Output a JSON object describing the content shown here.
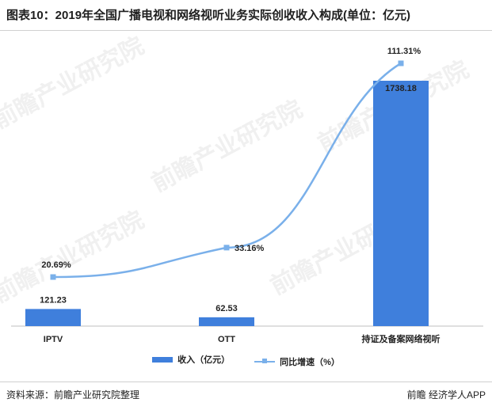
{
  "title": "图表10：2019年全国广播电视和网络视听业务实际创收收入构成(单位：亿元)",
  "source": "资料来源：前瞻产业研究院整理",
  "brand": "前瞻 经济学人APP",
  "watermark": "前瞻产业研究院",
  "colors": {
    "bar": "#3f7fdc",
    "line": "#7ab0ea"
  },
  "chart_data": {
    "type": "bar",
    "categories": [
      "IPTV",
      "OTT",
      "持证及备案网络视听"
    ],
    "series": [
      {
        "name": "收入（亿元）",
        "type": "bar",
        "values": [
          121.23,
          62.53,
          1738.18
        ],
        "labels": [
          "121.23",
          "62.53",
          "1738.18"
        ]
      },
      {
        "name": "同比增速（%）",
        "type": "line",
        "values": [
          20.69,
          33.16,
          111.31
        ],
        "labels": [
          "20.69%",
          "33.16%",
          "111.31%"
        ]
      }
    ],
    "legend": "bottom",
    "grid": false
  }
}
